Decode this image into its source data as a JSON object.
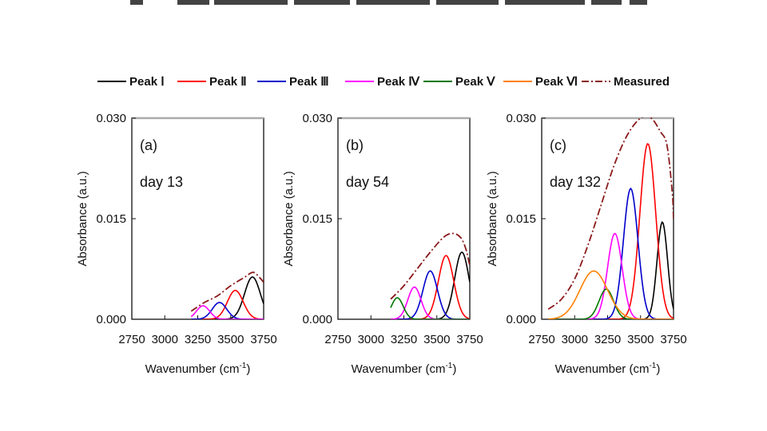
{
  "chart_data": {
    "type": "line",
    "legend": {
      "placement": "top",
      "entries": [
        {
          "label": "Peak Ⅰ",
          "color": "#000000",
          "dash": "solid"
        },
        {
          "label": "Peak Ⅱ",
          "color": "#ff0000",
          "dash": "solid"
        },
        {
          "label": "Peak Ⅲ",
          "color": "#0000cc",
          "dash": "solid"
        },
        {
          "label": "Peak Ⅳ",
          "color": "#ff00ff",
          "dash": "solid"
        },
        {
          "label": "Peak Ⅴ",
          "color": "#007700",
          "dash": "solid"
        },
        {
          "label": "Peak Ⅵ",
          "color": "#ff8000",
          "dash": "solid"
        },
        {
          "label": "Measured",
          "color": "#8b1a1a",
          "dash": "dashdot"
        }
      ]
    },
    "xlabel": "Wavenumber (cm",
    "xlabel_sup": "-1",
    "xlabel_close": ")",
    "ylabel": "Absorbance (a.u.)",
    "xlim": [
      2750,
      3750
    ],
    "ylim": [
      0,
      0.03
    ],
    "xticks": [
      2750,
      3000,
      3250,
      3500,
      3750
    ],
    "xtick_labels": [
      "2750",
      "3000",
      "3250",
      "3500",
      "3750"
    ],
    "yticks": [
      0,
      0.015,
      0.03
    ],
    "ytick_labels": [
      "0.000",
      "0.015",
      "0.030"
    ],
    "grid": false,
    "panels": [
      {
        "label": "(a)",
        "day": "day 13",
        "x_start": 3200,
        "peaks": [
          {
            "series": "Peak Ⅰ",
            "center": 3665,
            "height": 0.0063,
            "width": 60
          },
          {
            "series": "Peak Ⅱ",
            "center": 3535,
            "height": 0.0043,
            "width": 60
          },
          {
            "series": "Peak Ⅲ",
            "center": 3415,
            "height": 0.0025,
            "width": 55
          },
          {
            "series": "Peak Ⅳ",
            "center": 3290,
            "height": 0.002,
            "width": 50
          }
        ],
        "measured": [
          [
            3200,
            0.0012
          ],
          [
            3300,
            0.0025
          ],
          [
            3400,
            0.0035
          ],
          [
            3500,
            0.005
          ],
          [
            3600,
            0.0062
          ],
          [
            3670,
            0.007
          ],
          [
            3720,
            0.0062
          ],
          [
            3750,
            0.0055
          ]
        ]
      },
      {
        "label": "(b)",
        "day": "day 54",
        "x_start": 3150,
        "peaks": [
          {
            "series": "Peak Ⅰ",
            "center": 3690,
            "height": 0.01,
            "width": 55
          },
          {
            "series": "Peak Ⅱ",
            "center": 3570,
            "height": 0.0095,
            "width": 58
          },
          {
            "series": "Peak Ⅲ",
            "center": 3450,
            "height": 0.0072,
            "width": 55
          },
          {
            "series": "Peak Ⅳ",
            "center": 3330,
            "height": 0.0048,
            "width": 50
          },
          {
            "series": "Peak Ⅴ",
            "center": 3200,
            "height": 0.0032,
            "width": 45
          }
        ],
        "measured": [
          [
            3150,
            0.003
          ],
          [
            3250,
            0.005
          ],
          [
            3350,
            0.0075
          ],
          [
            3450,
            0.01
          ],
          [
            3550,
            0.0122
          ],
          [
            3620,
            0.0128
          ],
          [
            3680,
            0.0122
          ],
          [
            3720,
            0.0105
          ],
          [
            3750,
            0.008
          ]
        ]
      },
      {
        "label": "(c)",
        "day": "day 132",
        "x_start": 2800,
        "peaks": [
          {
            "series": "Peak Ⅰ",
            "center": 3665,
            "height": 0.0145,
            "width": 40
          },
          {
            "series": "Peak Ⅱ",
            "center": 3555,
            "height": 0.0262,
            "width": 60
          },
          {
            "series": "Peak Ⅲ",
            "center": 3425,
            "height": 0.0195,
            "width": 55
          },
          {
            "series": "Peak Ⅳ",
            "center": 3305,
            "height": 0.0128,
            "width": 55
          },
          {
            "series": "Peak Ⅴ",
            "center": 3240,
            "height": 0.0045,
            "width": 55
          },
          {
            "series": "Peak Ⅵ",
            "center": 3145,
            "height": 0.0072,
            "width": 105
          }
        ],
        "measured": [
          [
            2800,
            0.0015
          ],
          [
            2900,
            0.003
          ],
          [
            3000,
            0.006
          ],
          [
            3100,
            0.011
          ],
          [
            3200,
            0.017
          ],
          [
            3300,
            0.023
          ],
          [
            3400,
            0.0275
          ],
          [
            3500,
            0.03
          ],
          [
            3580,
            0.03
          ],
          [
            3650,
            0.028
          ],
          [
            3700,
            0.026
          ],
          [
            3740,
            0.019
          ],
          [
            3750,
            0.015
          ]
        ]
      }
    ]
  }
}
